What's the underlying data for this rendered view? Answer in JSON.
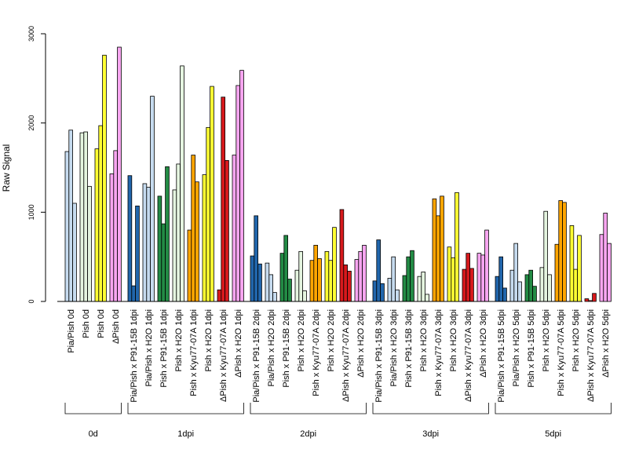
{
  "chart_data": {
    "type": "bar",
    "ylabel": "Raw Signal",
    "ylim": [
      0,
      3000
    ],
    "yticks": [
      0,
      1000,
      2000,
      3000
    ],
    "grid": false,
    "legend": "none",
    "groups": [
      {
        "name": "0d",
        "categories": [
          {
            "label": "Pia/Pish 0d",
            "color": "#c6dbef",
            "values": [
              1680,
              1920,
              1100
            ]
          },
          {
            "label": "Pish 0d",
            "color": "#e5f5e0",
            "values": [
              1890,
              1900,
              1290
            ]
          },
          {
            "label": "Pish 0d",
            "color": "#ffff33",
            "values": [
              1710,
              1970,
              2760
            ]
          },
          {
            "label": "ΔPish 0d",
            "color": "#f7a5f0",
            "values": [
              1430,
              1690,
              2850
            ]
          }
        ]
      },
      {
        "name": "1dpi",
        "categories": [
          {
            "label": "Pia/Pish x P91-15B 1dpi",
            "color": "#2166ac",
            "values": [
              1410,
              175,
              1070
            ]
          },
          {
            "label": "Pia/Pish x H2O 1dpi",
            "color": "#c6dbef",
            "values": [
              1320,
              1280,
              2300
            ]
          },
          {
            "label": "Pish x P91-15B 1dpi",
            "color": "#238b45",
            "values": [
              1180,
              870,
              1510
            ]
          },
          {
            "label": "Pish x H2O 1dpi",
            "color": "#e5f5e0",
            "values": [
              1250,
              1540,
              2640
            ]
          },
          {
            "label": "Pish x Kyu77-07A 1dpi",
            "color": "#ffa500",
            "values": [
              800,
              1640,
              1340
            ]
          },
          {
            "label": "Pish x H2O 1dpi",
            "color": "#ffff33",
            "values": [
              1420,
              1950,
              2410
            ]
          },
          {
            "label": "ΔPish x Kyu77-07A 1dpi",
            "color": "#d7191c",
            "values": [
              130,
              2290,
              1580
            ]
          },
          {
            "label": "ΔPish x H2O 1dpi",
            "color": "#f7a5f0",
            "values": [
              1640,
              2420,
              2590
            ]
          }
        ]
      },
      {
        "name": "2dpi",
        "categories": [
          {
            "label": "Pia/Pish x P91-15B 2dpi",
            "color": "#2166ac",
            "values": [
              510,
              960,
              420
            ]
          },
          {
            "label": "Pia/Pish x H2O 2dpi",
            "color": "#c6dbef",
            "values": [
              430,
              300,
              100
            ]
          },
          {
            "label": "Pish x P91-15B 2dpi",
            "color": "#238b45",
            "values": [
              540,
              740,
              250
            ]
          },
          {
            "label": "Pish x H2O 2dpi",
            "color": "#e5f5e0",
            "values": [
              350,
              560,
              120
            ]
          },
          {
            "label": "Pish x Kyu77-07A 2dpi",
            "color": "#ffa500",
            "values": [
              460,
              630,
              480
            ]
          },
          {
            "label": "Pish x H2O 2dpi",
            "color": "#ffff33",
            "values": [
              560,
              460,
              830
            ]
          },
          {
            "label": "ΔPish x Kyu77-07A 2dpi",
            "color": "#d7191c",
            "values": [
              1030,
              410,
              340
            ]
          },
          {
            "label": "ΔPish x H2O 2dpi",
            "color": "#f7a5f0",
            "values": [
              470,
              560,
              630
            ]
          }
        ]
      },
      {
        "name": "3dpi",
        "categories": [
          {
            "label": "Pia/Pish x P91-15B 3dpi",
            "color": "#2166ac",
            "values": [
              230,
              690,
              200
            ]
          },
          {
            "label": "Pia/Pish x H2O 3dpi",
            "color": "#c6dbef",
            "values": [
              260,
              500,
              130
            ]
          },
          {
            "label": "Pish x P91-15B 3dpi",
            "color": "#238b45",
            "values": [
              290,
              500,
              570
            ]
          },
          {
            "label": "Pish x H2O 3dpi",
            "color": "#e5f5e0",
            "values": [
              280,
              330,
              80
            ]
          },
          {
            "label": "Pish x Kyu77-07A 3dpi",
            "color": "#ffa500",
            "values": [
              1150,
              960,
              1180
            ]
          },
          {
            "label": "Pish x H2O 3dpi",
            "color": "#ffff33",
            "values": [
              610,
              490,
              1220
            ]
          },
          {
            "label": "ΔPish x Kyu77-07A 3dpi",
            "color": "#d7191c",
            "values": [
              360,
              540,
              370
            ]
          },
          {
            "label": "ΔPish x H2O 3dpi",
            "color": "#f7a5f0",
            "values": [
              540,
              520,
              800
            ]
          }
        ]
      },
      {
        "name": "5dpi",
        "categories": [
          {
            "label": "Pia/Pish x P91-15B 5dpi",
            "color": "#2166ac",
            "values": [
              280,
              500,
              150
            ]
          },
          {
            "label": "Pia/Pish x H2O 5dpi",
            "color": "#c6dbef",
            "values": [
              350,
              650,
              220
            ]
          },
          {
            "label": "Pish x P91-15B 5dpi",
            "color": "#238b45",
            "values": [
              300,
              350,
              170
            ]
          },
          {
            "label": "Pish x H2O 5dpi",
            "color": "#e5f5e0",
            "values": [
              380,
              1010,
              300
            ]
          },
          {
            "label": "Pish x Kyu77-07A 5dpi",
            "color": "#ffa500",
            "values": [
              640,
              1130,
              1110
            ]
          },
          {
            "label": "Pish x H2O 5dpi",
            "color": "#ffff33",
            "values": [
              850,
              360,
              740
            ]
          },
          {
            "label": "ΔPish x Kyu77-07A 5dpi",
            "color": "#d7191c",
            "values": [
              30,
              10,
              90
            ]
          },
          {
            "label": "ΔPish x H2O 5dpi",
            "color": "#f7a5f0",
            "values": [
              750,
              990,
              650
            ]
          }
        ]
      }
    ]
  }
}
